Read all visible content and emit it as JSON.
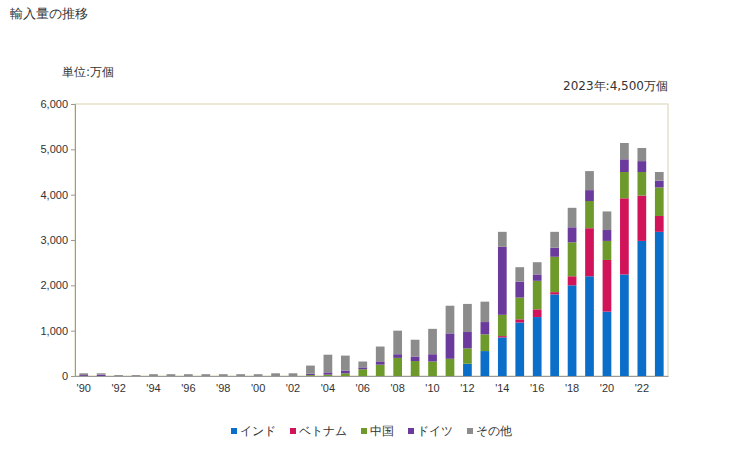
{
  "chart_data": {
    "type": "bar",
    "title": "輸入量の推移",
    "y_label": "単位:万個",
    "annotation": "2023年:4,500万個",
    "stacked": true,
    "legend": "bottom",
    "grid": false,
    "categories": [
      "'90",
      null,
      "'92",
      null,
      "'94",
      null,
      "'96",
      null,
      "'98",
      null,
      "'00",
      null,
      "'02",
      null,
      "'04",
      null,
      "'06",
      null,
      "'08",
      null,
      "'10",
      null,
      "'12",
      null,
      "'14",
      null,
      "'16",
      null,
      "'18",
      null,
      "'20",
      null,
      "'22",
      null
    ],
    "ylim": [
      0,
      6000
    ],
    "yticks": [
      0,
      {
        "value": 1000,
        "label": "1,000"
      },
      {
        "value": 2000,
        "label": "2,000"
      },
      {
        "value": 3000,
        "label": "3,000"
      },
      {
        "value": 4000,
        "label": "4,000"
      },
      {
        "value": 5000,
        "label": "5,000"
      },
      {
        "value": 6000,
        "label": "6,000"
      }
    ],
    "series": [
      {
        "name": "インド",
        "color": "#0b6fc9",
        "values": [
          0,
          0,
          0,
          0,
          0,
          0,
          0,
          0,
          0,
          0,
          0,
          0,
          0,
          0,
          0,
          0,
          0,
          0,
          0,
          0,
          0,
          0,
          270,
          550,
          850,
          1180,
          1300,
          1800,
          2000,
          2200,
          1420,
          2240,
          2980,
          3180
        ]
      },
      {
        "name": "ベトナム",
        "color": "#d1145a",
        "values": [
          0,
          0,
          0,
          0,
          0,
          0,
          0,
          0,
          0,
          0,
          0,
          0,
          0,
          0,
          0,
          0,
          0,
          0,
          0,
          0,
          0,
          0,
          0,
          0,
          30,
          70,
          170,
          50,
          200,
          1060,
          1140,
          1680,
          1000,
          350
        ]
      },
      {
        "name": "中国",
        "color": "#6e9a2c",
        "values": [
          0,
          0,
          0,
          0,
          0,
          0,
          0,
          0,
          0,
          0,
          0,
          0,
          0,
          20,
          30,
          60,
          150,
          250,
          400,
          330,
          320,
          380,
          340,
          370,
          470,
          480,
          630,
          780,
          750,
          600,
          420,
          580,
          520,
          630
        ]
      },
      {
        "name": "ドイツ",
        "color": "#6a3a9c",
        "values": [
          20,
          30,
          0,
          0,
          0,
          0,
          0,
          0,
          0,
          0,
          0,
          0,
          0,
          30,
          50,
          60,
          40,
          60,
          80,
          100,
          160,
          560,
          360,
          270,
          1500,
          350,
          140,
          200,
          330,
          240,
          240,
          280,
          240,
          150
        ]
      },
      {
        "name": "その他",
        "color": "#8c8c8c",
        "values": [
          40,
          30,
          20,
          20,
          40,
          40,
          40,
          40,
          40,
          40,
          40,
          60,
          60,
          180,
          390,
          330,
          130,
          340,
          520,
          370,
          560,
          610,
          620,
          450,
          330,
          320,
          270,
          350,
          430,
          420,
          410,
          360,
          290,
          190
        ]
      }
    ]
  }
}
